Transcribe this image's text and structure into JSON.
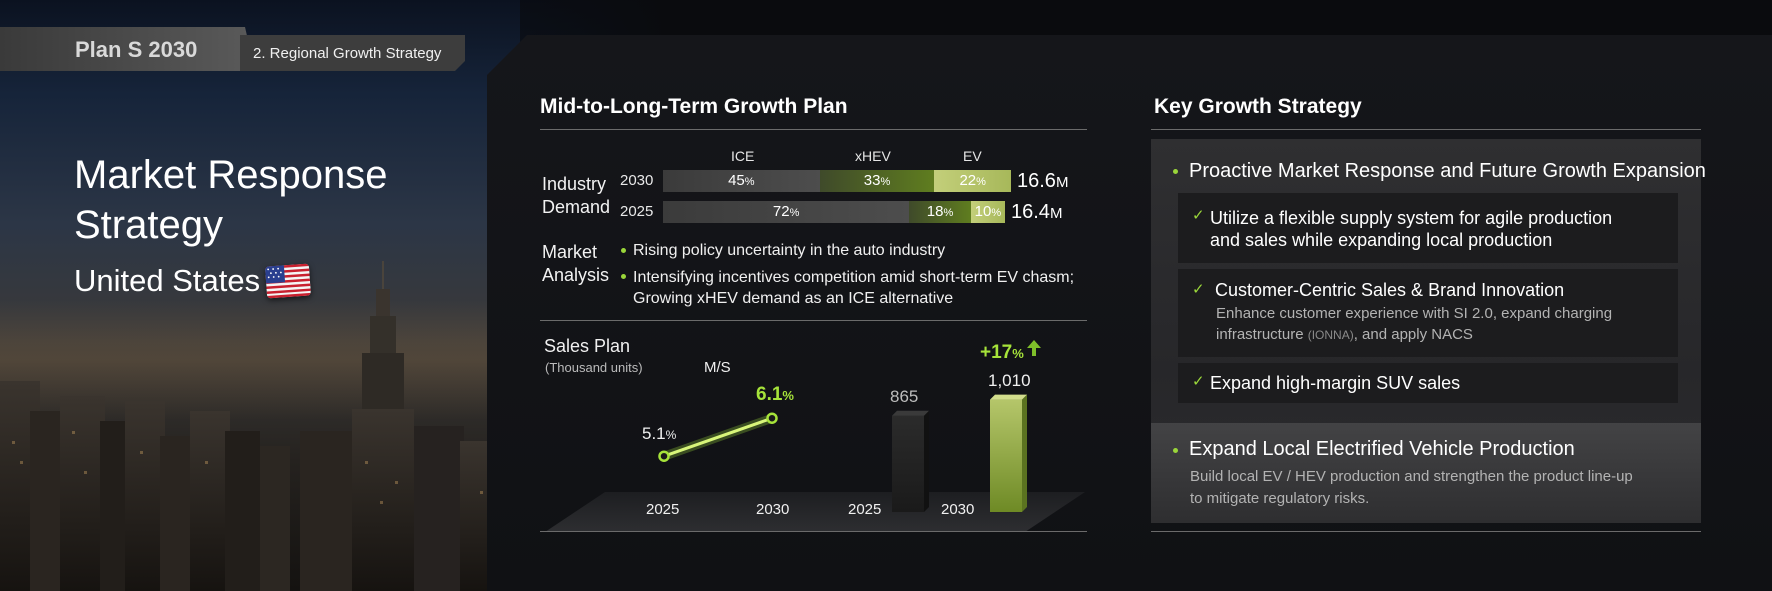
{
  "header": {
    "plan": "Plan S 2030",
    "section": "2. Regional Growth Strategy"
  },
  "left": {
    "title": "Market Response Strategy",
    "country": "United States"
  },
  "growth_plan": {
    "title": "Mid-to-Long-Term Growth Plan",
    "columns": {
      "ice": "ICE",
      "xhev": "xHEV",
      "ev": "EV"
    },
    "industry_demand_label_1": "Industry",
    "industry_demand_label_2": "Demand",
    "rows": [
      {
        "year": "2030",
        "ice": "45",
        "xhev": "33",
        "ev": "22",
        "ice_pct": 45,
        "xhev_pct": 33,
        "ev_pct": 22,
        "total": "16.6",
        "unit": "M"
      },
      {
        "year": "2025",
        "ice": "72",
        "xhev": "18",
        "ev": "10",
        "ice_pct": 72,
        "xhev_pct": 18,
        "ev_pct": 10,
        "total": "16.4",
        "unit": "M"
      }
    ],
    "pct": "%",
    "market_label_1": "Market",
    "market_label_2": "Analysis",
    "market_bullets": [
      "Rising policy uncertainty in the auto industry",
      "Intensifying incentives competition amid short-term EV chasm;",
      "Growing xHEV demand as an ICE alternative"
    ]
  },
  "sales_plan": {
    "title": "Sales Plan",
    "unit": "(Thousand units)",
    "ms_label": "M/S",
    "growth": "+17",
    "chart_data": [
      {
        "type": "line",
        "title": "M/S",
        "x": [
          "2025",
          "2030"
        ],
        "values": [
          5.1,
          6.1
        ],
        "labels": [
          "5.1",
          "6.1"
        ],
        "unit": "%"
      },
      {
        "type": "bar",
        "title": "Sales Plan",
        "categories": [
          "2025",
          "2030"
        ],
        "values": [
          865,
          1010
        ],
        "labels": [
          "865",
          "1,010"
        ]
      }
    ]
  },
  "key_strategy": {
    "title": "Key Growth Strategy",
    "point1": "Proactive Market Response and Future Growth Expansion",
    "items": [
      {
        "line1": "Utilize a flexible supply system for agile production",
        "line2": "and sales while expanding local production"
      },
      {
        "title": "Customer-Centric Sales & Brand Innovation",
        "sub1": "Enhance customer experience with SI 2.0, expand charging",
        "sub2a": "infrastructure ",
        "sub2b": "(IONNA)",
        "sub2c": ", and apply NACS"
      },
      {
        "title": "Expand high-margin SUV sales"
      }
    ],
    "point2": "Expand Local Electrified Vehicle Production",
    "point2_sub1": "Build local EV / HEV production and strengthen the product line-up",
    "point2_sub2": "to mitigate regulatory risks."
  },
  "colors": {
    "accent_green": "#9ad63a",
    "bar_ice": "#4a4a4a",
    "bar_xhev": "#5c7a1e",
    "bar_ev": "#b8c86a"
  },
  "icons": {
    "check": "check-icon",
    "flag": "us-flag-icon",
    "arrow": "arrow-up-icon"
  }
}
